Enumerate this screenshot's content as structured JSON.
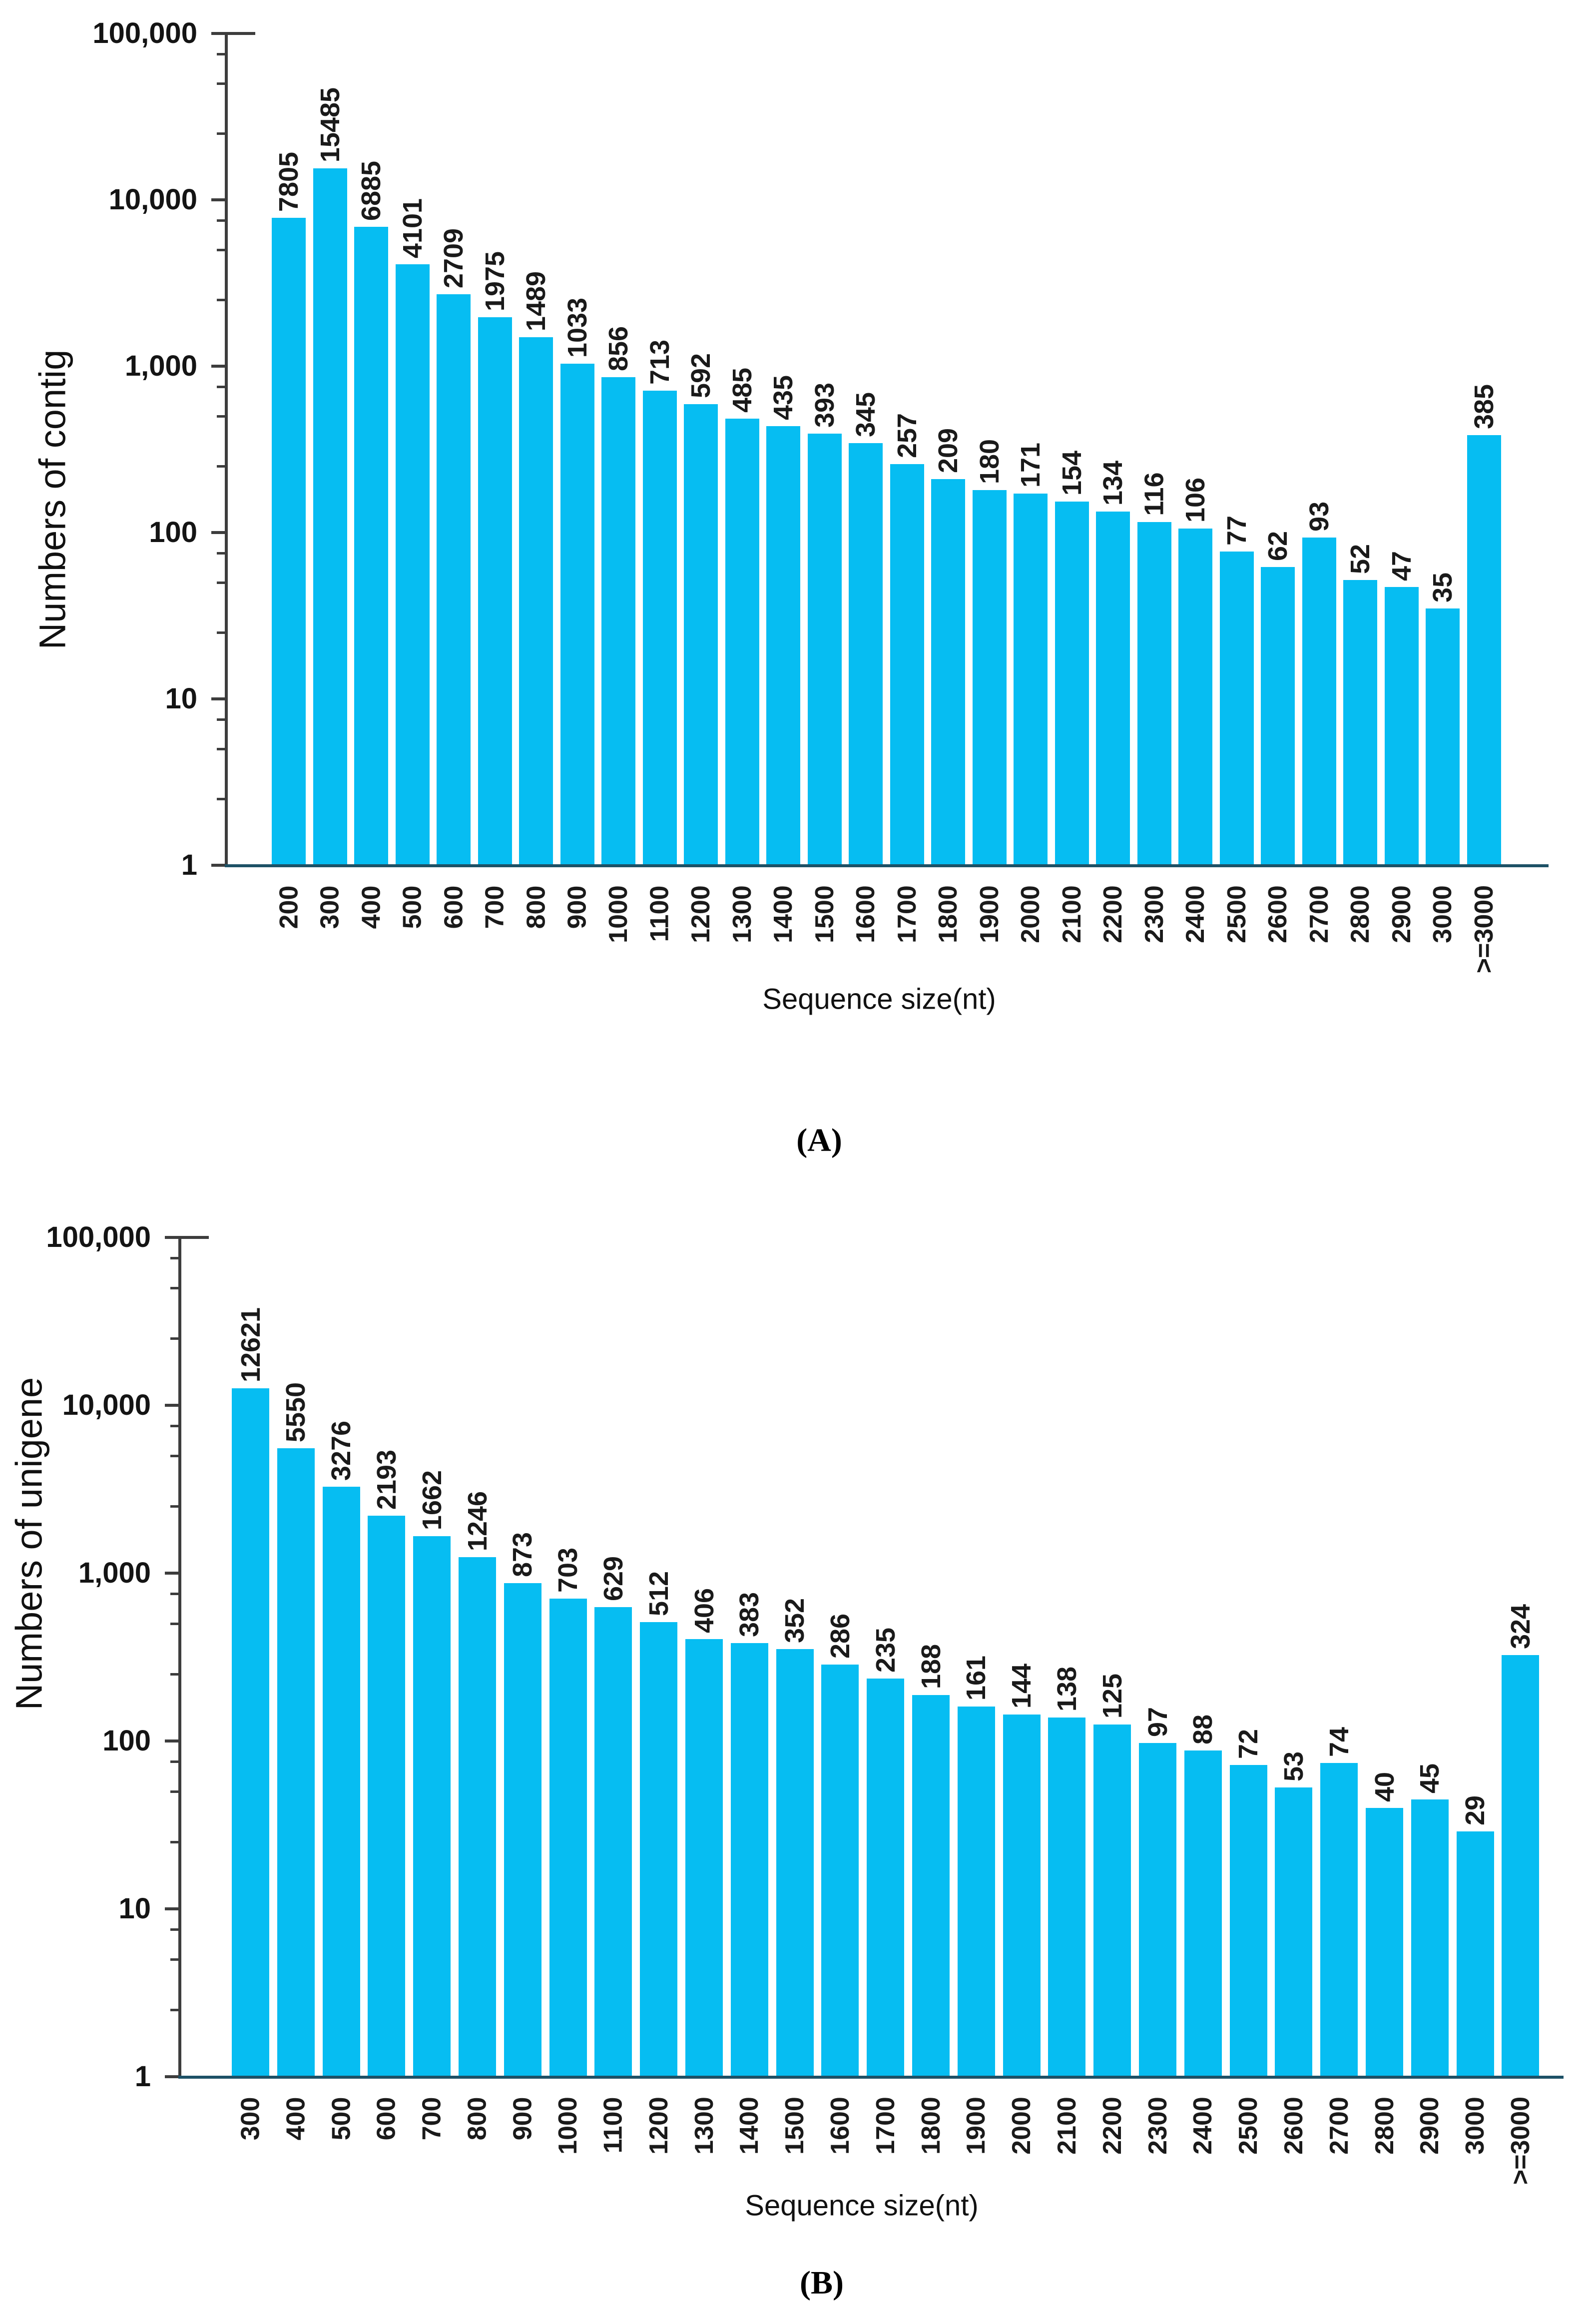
{
  "chart_data": [
    {
      "type": "bar",
      "panel_label": "(A)",
      "ylabel": "Numbers of contig",
      "xlabel": "Sequence size(nt)",
      "yscale": "log",
      "ylim": [
        1,
        100000
      ],
      "y_tick_labels": [
        "100,000",
        "10,000",
        "1,000",
        "100",
        "10",
        "1"
      ],
      "grid": false,
      "legend": "none",
      "bar_color": "#06bdf2",
      "categories": [
        "200",
        "300",
        "400",
        "500",
        "600",
        "700",
        "800",
        "900",
        "1000",
        "1100",
        "1200",
        "1300",
        "1400",
        "1500",
        "1600",
        "1700",
        "1800",
        "1900",
        "2000",
        "2100",
        "2200",
        "2300",
        "2400",
        "2500",
        "2600",
        "2700",
        "2800",
        "2900",
        "3000",
        ">=3000"
      ],
      "values": [
        7805,
        15485,
        6885,
        4101,
        2709,
        1975,
        1489,
        1033,
        856,
        713,
        592,
        485,
        435,
        393,
        345,
        257,
        209,
        180,
        171,
        154,
        134,
        116,
        106,
        77,
        62,
        93,
        52,
        47,
        35,
        385
      ]
    },
    {
      "type": "bar",
      "panel_label": "(B)",
      "ylabel": "Numbers of unigene",
      "xlabel": "Sequence size(nt)",
      "yscale": "log",
      "ylim": [
        1,
        100000
      ],
      "y_tick_labels": [
        "100,000",
        "10,000",
        "1,000",
        "100",
        "10",
        "1"
      ],
      "grid": false,
      "legend": "none",
      "bar_color": "#06bdf2",
      "categories": [
        "300",
        "400",
        "500",
        "600",
        "700",
        "800",
        "900",
        "1000",
        "1100",
        "1200",
        "1300",
        "1400",
        "1500",
        "1600",
        "1700",
        "1800",
        "1900",
        "2000",
        "2100",
        "2200",
        "2300",
        "2400",
        "2500",
        "2600",
        "2700",
        "2800",
        "2900",
        "3000",
        ">=3000"
      ],
      "values": [
        12621,
        5550,
        3276,
        2193,
        1662,
        1246,
        873,
        703,
        629,
        512,
        406,
        383,
        352,
        286,
        235,
        188,
        161,
        144,
        138,
        125,
        97,
        88,
        72,
        53,
        74,
        40,
        45,
        29,
        324
      ]
    }
  ]
}
